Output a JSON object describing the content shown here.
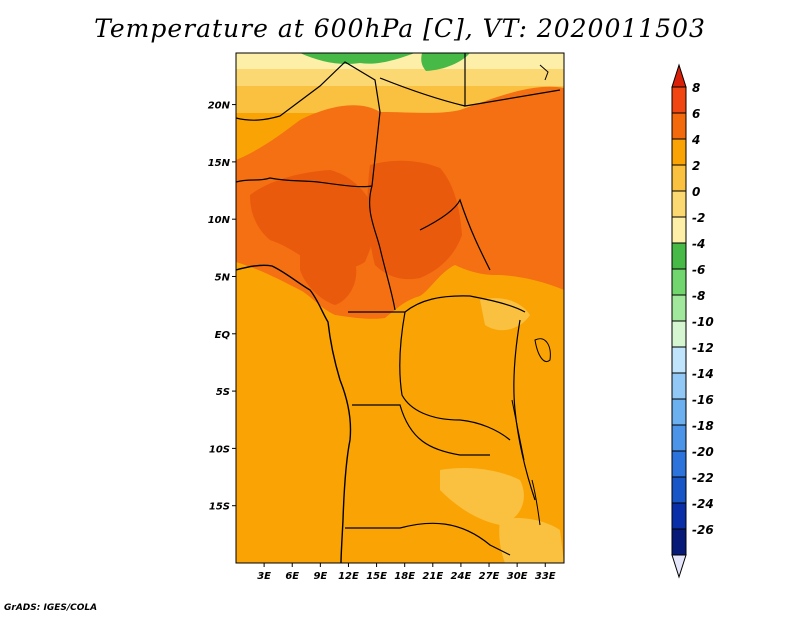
{
  "title": "Temperature at 600hPa [C], VT: 2020011503",
  "credit": "GrADS: IGES/COLA",
  "map": {
    "lat_labels": [
      "20N",
      "15N",
      "10N",
      "5N",
      "EQ",
      "5S",
      "10S",
      "15S"
    ],
    "lon_labels": [
      "3E",
      "6E",
      "9E",
      "12E",
      "15E",
      "18E",
      "21E",
      "24E",
      "27E",
      "30E",
      "33E"
    ],
    "lat_range": [
      -20,
      24.5
    ],
    "lon_range": [
      0,
      35
    ]
  },
  "colorbar": {
    "levels": [
      "8",
      "6",
      "4",
      "2",
      "0",
      "-2",
      "-4",
      "-6",
      "-8",
      "-10",
      "-12",
      "-14",
      "-16",
      "-18",
      "-20",
      "-22",
      "-24",
      "-26"
    ],
    "colors": [
      "#d92008",
      "#f24612",
      "#f26a0c",
      "#f9a404",
      "#fac040",
      "#fcd873",
      "#fdeea8",
      "#46b946",
      "#72d66e",
      "#a2e89c",
      "#d6f6d2",
      "#c0e4fc",
      "#92c8f6",
      "#6cb0f0",
      "#4c94e8",
      "#2c74dc",
      "#1856c8",
      "#0a2ea8",
      "#081a78"
    ],
    "top_arrow_color": "#d92008",
    "bottom_arrow_color": "#e6e6fa"
  },
  "palette": {
    "deep_orange": "#ea5a0c",
    "orange": "#f47012",
    "amber": "#f9a404",
    "light_amber": "#fac040",
    "yellow": "#fcd873",
    "pale_yellow": "#fdeea8",
    "green": "#46b946"
  }
}
